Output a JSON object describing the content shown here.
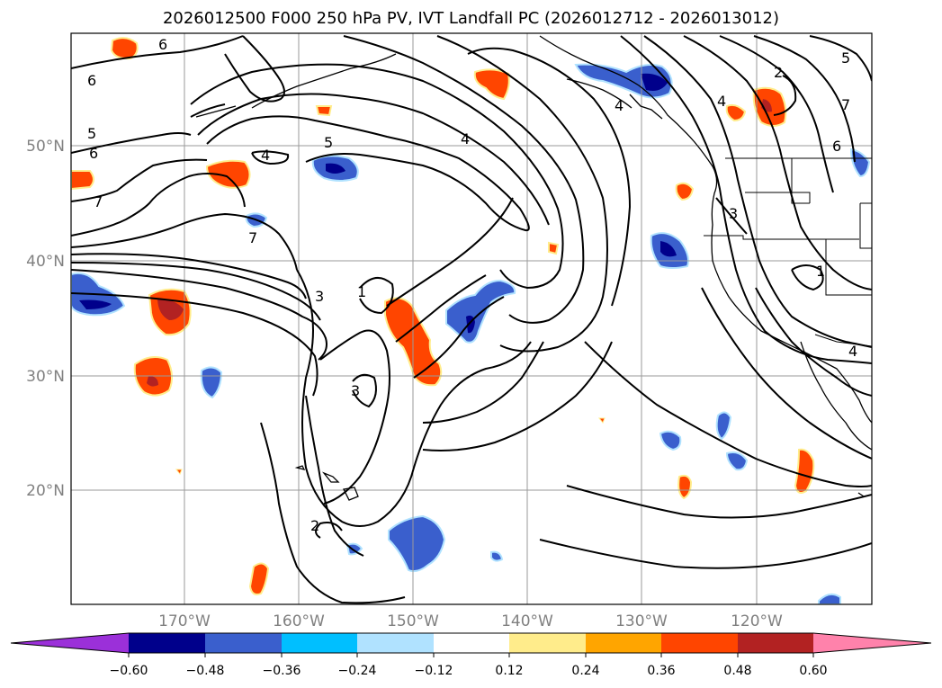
{
  "title": "2026012500 F000 250 hPa PV, IVT Landfall PC (2026012712 - 2026013012)",
  "lat_labels": [
    "50°N",
    "40°N",
    "30°N",
    "20°N"
  ],
  "lon_labels": [
    "170°W",
    "160°W",
    "150°W",
    "140°W",
    "130°W",
    "120°W"
  ],
  "colorbar": {
    "ticks": [
      "−0.60",
      "−0.48",
      "−0.36",
      "−0.24",
      "−0.12",
      "0.12",
      "0.24",
      "0.36",
      "0.48",
      "0.60"
    ],
    "colors": [
      "#9b30d9",
      "#00008b",
      "#3a5fcd",
      "#00bfff",
      "#b0e2ff",
      "#ffffff",
      "#ffec8b",
      "#ffa500",
      "#ff4500",
      "#b22222",
      "#ff82ab"
    ]
  },
  "contour_labels": {
    "c6a": "6",
    "c6b": "6",
    "c6c": "6",
    "c5a": "5",
    "c5b": "5",
    "c4a": "4",
    "c7a": "7",
    "c7b": "7",
    "c4b": "4",
    "c3a": "3",
    "c1a": "1",
    "c3b": "3",
    "c2a": "2",
    "c2b": "2",
    "c4c": "4",
    "c4d": "4",
    "c3c": "3",
    "c5c": "5",
    "c7c": "7",
    "c6d": "6",
    "c1b": "1",
    "c4e": "4"
  }
}
